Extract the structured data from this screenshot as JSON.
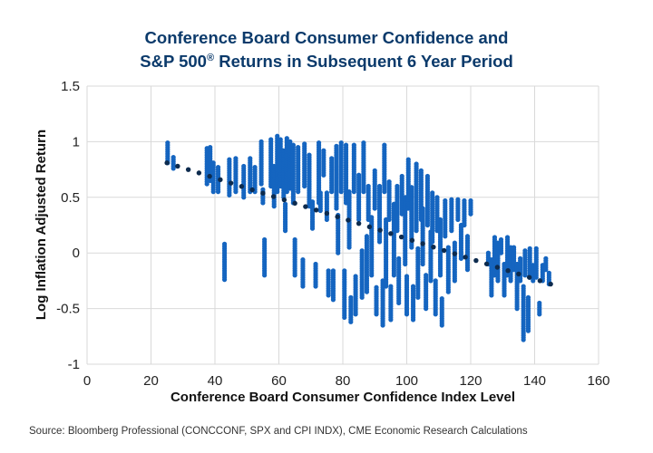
{
  "chart_data": {
    "type": "scatter",
    "title_line1": "Conference Board Consumer Confidence and",
    "title_line2_pre": "S&P 500",
    "title_line2_sup": "®",
    "title_line2_post": " Returns in Subsequent 6 Year Period",
    "xlabel": "Conference Board Consumer Confidence Index Level",
    "ylabel": "Log Inflation Adjusted Return",
    "xlim": [
      0,
      160
    ],
    "ylim": [
      -1,
      1.5
    ],
    "xticks": [
      "0",
      "20",
      "40",
      "60",
      "80",
      "100",
      "120",
      "140",
      "160"
    ],
    "yticks": [
      "1.5",
      "1",
      "0.5",
      "0",
      "-0.5",
      "-1"
    ],
    "grid": true,
    "colors": {
      "points": "#1565c0",
      "trendline": "#0d2b4e",
      "title": "#0b3a6b",
      "grid": "#d9d9d9"
    },
    "series": [
      {
        "name": "Observations",
        "note": "clusters of vertically stacked points: [x, y_min, y_max]",
        "clusters": [
          [
            25.2,
            0.81,
            0.99
          ],
          [
            27.0,
            0.76,
            0.87
          ],
          [
            37.5,
            0.62,
            0.95
          ],
          [
            38.5,
            0.65,
            0.96
          ],
          [
            39.5,
            0.55,
            0.82
          ],
          [
            41.0,
            0.55,
            0.78
          ],
          [
            43.0,
            -0.24,
            0.09
          ],
          [
            44.5,
            0.52,
            0.85
          ],
          [
            46.5,
            0.55,
            0.86
          ],
          [
            49.0,
            0.5,
            0.78
          ],
          [
            51.0,
            0.55,
            0.85
          ],
          [
            52.5,
            0.55,
            0.78
          ],
          [
            54.5,
            0.62,
            1.0
          ],
          [
            55.0,
            0.45,
            0.58
          ],
          [
            55.5,
            -0.2,
            0.12
          ],
          [
            57.5,
            0.6,
            1.03
          ],
          [
            58.5,
            0.42,
            0.78
          ],
          [
            59.5,
            0.55,
            1.05
          ],
          [
            60.5,
            0.6,
            1.02
          ],
          [
            61.5,
            0.5,
            0.92
          ],
          [
            62.0,
            0.2,
            0.45
          ],
          [
            62.5,
            0.55,
            1.03
          ],
          [
            63.5,
            0.58,
            1.0
          ],
          [
            64.5,
            0.45,
            0.98
          ],
          [
            65.0,
            -0.2,
            0.12
          ],
          [
            66.0,
            0.55,
            0.95
          ],
          [
            67.5,
            -0.3,
            -0.05
          ],
          [
            68.0,
            0.6,
            0.98
          ],
          [
            69.5,
            0.42,
            0.88
          ],
          [
            70.5,
            0.22,
            0.46
          ],
          [
            71.5,
            -0.3,
            -0.1
          ],
          [
            72.5,
            0.45,
            1.0
          ],
          [
            73.0,
            0.38,
            0.55
          ],
          [
            74.0,
            0.7,
            0.92
          ],
          [
            75.0,
            0.3,
            0.55
          ],
          [
            75.5,
            -0.38,
            -0.16
          ],
          [
            76.5,
            0.55,
            0.85
          ],
          [
            77.0,
            -0.42,
            -0.15
          ],
          [
            78.0,
            0.4,
            0.96
          ],
          [
            78.5,
            0.0,
            0.35
          ],
          [
            79.5,
            0.55,
            1.0
          ],
          [
            80.5,
            -0.58,
            -0.15
          ],
          [
            81.0,
            0.45,
            0.98
          ],
          [
            82.0,
            0.05,
            0.55
          ],
          [
            82.5,
            -0.62,
            -0.4
          ],
          [
            83.5,
            0.55,
            0.98
          ],
          [
            84.0,
            -0.55,
            -0.2
          ],
          [
            85.0,
            0.3,
            0.7
          ],
          [
            86.0,
            -0.4,
            0.02
          ],
          [
            86.5,
            0.55,
            1.0
          ],
          [
            87.5,
            -0.35,
            0.15
          ],
          [
            88.0,
            0.3,
            0.6
          ],
          [
            89.0,
            -0.2,
            0.32
          ],
          [
            90.0,
            0.4,
            0.75
          ],
          [
            90.5,
            -0.55,
            -0.3
          ],
          [
            91.5,
            0.1,
            0.6
          ],
          [
            92.5,
            -0.65,
            -0.25
          ],
          [
            93.0,
            0.55,
            0.98
          ],
          [
            93.5,
            -0.3,
            0.3
          ],
          [
            94.5,
            0.3,
            0.65
          ],
          [
            95.0,
            -0.6,
            -0.3
          ],
          [
            96.0,
            -0.2,
            0.45
          ],
          [
            97.0,
            0.2,
            0.6
          ],
          [
            97.5,
            -0.45,
            -0.05
          ],
          [
            98.5,
            0.35,
            0.7
          ],
          [
            99.5,
            -0.1,
            0.5
          ],
          [
            100.0,
            -0.55,
            -0.2
          ],
          [
            100.5,
            0.4,
            0.85
          ],
          [
            101.5,
            0.05,
            0.6
          ],
          [
            102.0,
            -0.6,
            -0.3
          ],
          [
            103.0,
            0.2,
            0.8
          ],
          [
            103.5,
            -0.4,
            0.05
          ],
          [
            104.5,
            0.3,
            0.75
          ],
          [
            105.0,
            -0.1,
            0.4
          ],
          [
            106.0,
            -0.5,
            -0.2
          ],
          [
            106.5,
            0.25,
            0.7
          ],
          [
            107.5,
            -0.25,
            0.2
          ],
          [
            108.0,
            0.1,
            0.55
          ],
          [
            109.0,
            -0.55,
            -0.25
          ],
          [
            109.5,
            0.2,
            0.5
          ],
          [
            110.5,
            -0.2,
            0.3
          ],
          [
            111.0,
            -0.65,
            -0.4
          ],
          [
            112.0,
            0.15,
            0.48
          ],
          [
            113.0,
            -0.35,
            0.05
          ],
          [
            114.0,
            0.2,
            0.48
          ],
          [
            115.0,
            -0.25,
            0.1
          ],
          [
            116.0,
            0.3,
            0.48
          ],
          [
            117.0,
            -0.05,
            0.25
          ],
          [
            118.0,
            0.25,
            0.48
          ],
          [
            119.0,
            -0.15,
            0.15
          ],
          [
            120.0,
            0.35,
            0.48
          ],
          [
            125.5,
            -0.1,
            0.0
          ],
          [
            126.5,
            -0.38,
            -0.05
          ],
          [
            127.5,
            -0.2,
            0.15
          ],
          [
            128.5,
            -0.25,
            0.1
          ],
          [
            129.5,
            0.0,
            0.12
          ],
          [
            130.5,
            -0.38,
            -0.1
          ],
          [
            131.5,
            -0.2,
            0.15
          ],
          [
            132.5,
            -0.25,
            0.05
          ],
          [
            133.5,
            -0.15,
            0.05
          ],
          [
            134.5,
            -0.5,
            -0.1
          ],
          [
            135.5,
            -0.25,
            -0.05
          ],
          [
            136.5,
            -0.78,
            -0.3
          ],
          [
            137.0,
            -0.2,
            0.02
          ],
          [
            138.0,
            -0.7,
            -0.4
          ],
          [
            138.5,
            -0.22,
            0.05
          ],
          [
            139.5,
            -0.25,
            -0.1
          ],
          [
            140.5,
            -0.22,
            0.05
          ],
          [
            141.5,
            -0.55,
            -0.45
          ],
          [
            142.5,
            -0.25,
            -0.1
          ],
          [
            143.5,
            -0.15,
            -0.05
          ],
          [
            144.5,
            -0.28,
            -0.18
          ]
        ]
      }
    ],
    "trendline": {
      "type": "linear",
      "x": [
        25,
        145
      ],
      "y": [
        0.81,
        -0.28
      ],
      "style": "dotted"
    }
  },
  "source": "Source: Bloomberg Professional (CONCCONF, SPX and CPI INDX), CME Economic Research Calculations"
}
